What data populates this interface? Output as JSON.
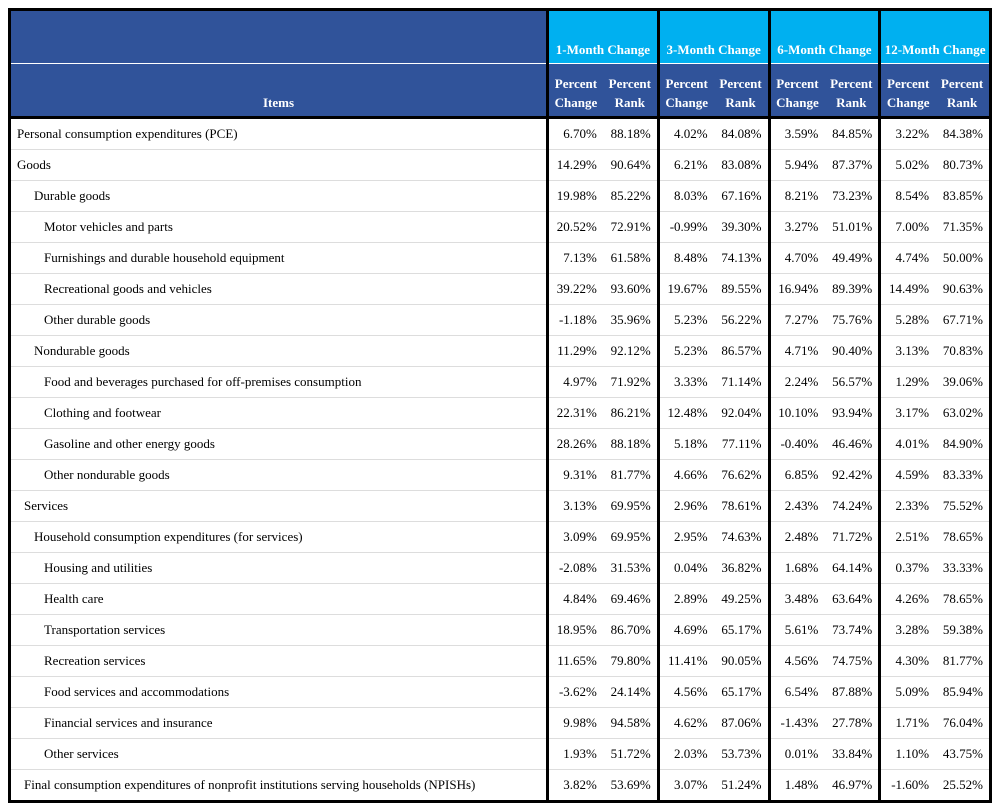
{
  "header": {
    "items": "Items",
    "groups": [
      "1-Month Change",
      "3-Month Change",
      "6-Month Change",
      "12-Month Change"
    ],
    "subheaders": [
      "Percent Change",
      "Percent Rank"
    ]
  },
  "rows": [
    {
      "label": "Personal consumption expenditures (PCE)",
      "values": [
        "6.70%",
        "88.18%",
        "4.02%",
        "84.08%",
        "3.59%",
        "84.85%",
        "3.22%",
        "84.38%"
      ]
    },
    {
      "label": "Goods",
      "values": [
        "14.29%",
        "90.64%",
        "6.21%",
        "83.08%",
        "5.94%",
        "87.37%",
        "5.02%",
        "80.73%"
      ]
    },
    {
      "label": "Durable goods",
      "values": [
        "19.98%",
        "85.22%",
        "8.03%",
        "67.16%",
        "8.21%",
        "73.23%",
        "8.54%",
        "83.85%"
      ]
    },
    {
      "label": "Motor vehicles and parts",
      "values": [
        "20.52%",
        "72.91%",
        "-0.99%",
        "39.30%",
        "3.27%",
        "51.01%",
        "7.00%",
        "71.35%"
      ]
    },
    {
      "label": "Furnishings and durable household equipment",
      "values": [
        "7.13%",
        "61.58%",
        "8.48%",
        "74.13%",
        "4.70%",
        "49.49%",
        "4.74%",
        "50.00%"
      ]
    },
    {
      "label": "Recreational goods and vehicles",
      "values": [
        "39.22%",
        "93.60%",
        "19.67%",
        "89.55%",
        "16.94%",
        "89.39%",
        "14.49%",
        "90.63%"
      ]
    },
    {
      "label": "Other durable goods",
      "values": [
        "-1.18%",
        "35.96%",
        "5.23%",
        "56.22%",
        "7.27%",
        "75.76%",
        "5.28%",
        "67.71%"
      ]
    },
    {
      "label": "Nondurable goods",
      "values": [
        "11.29%",
        "92.12%",
        "5.23%",
        "86.57%",
        "4.71%",
        "90.40%",
        "3.13%",
        "70.83%"
      ]
    },
    {
      "label": "Food and beverages purchased for off-premises consumption",
      "values": [
        "4.97%",
        "71.92%",
        "3.33%",
        "71.14%",
        "2.24%",
        "56.57%",
        "1.29%",
        "39.06%"
      ]
    },
    {
      "label": "Clothing and footwear",
      "values": [
        "22.31%",
        "86.21%",
        "12.48%",
        "92.04%",
        "10.10%",
        "93.94%",
        "3.17%",
        "63.02%"
      ]
    },
    {
      "label": "Gasoline and other energy goods",
      "values": [
        "28.26%",
        "88.18%",
        "5.18%",
        "77.11%",
        "-0.40%",
        "46.46%",
        "4.01%",
        "84.90%"
      ]
    },
    {
      "label": "Other nondurable goods",
      "values": [
        "9.31%",
        "81.77%",
        "4.66%",
        "76.62%",
        "6.85%",
        "92.42%",
        "4.59%",
        "83.33%"
      ]
    },
    {
      "label": "Services",
      "values": [
        "3.13%",
        "69.95%",
        "2.96%",
        "78.61%",
        "2.43%",
        "74.24%",
        "2.33%",
        "75.52%"
      ]
    },
    {
      "label": "Household consumption expenditures (for services)",
      "values": [
        "3.09%",
        "69.95%",
        "2.95%",
        "74.63%",
        "2.48%",
        "71.72%",
        "2.51%",
        "78.65%"
      ]
    },
    {
      "label": "Housing and utilities",
      "values": [
        "-2.08%",
        "31.53%",
        "0.04%",
        "36.82%",
        "1.68%",
        "64.14%",
        "0.37%",
        "33.33%"
      ]
    },
    {
      "label": "Health care",
      "values": [
        "4.84%",
        "69.46%",
        "2.89%",
        "49.25%",
        "3.48%",
        "63.64%",
        "4.26%",
        "78.65%"
      ]
    },
    {
      "label": "Transportation services",
      "values": [
        "18.95%",
        "86.70%",
        "4.69%",
        "65.17%",
        "5.61%",
        "73.74%",
        "3.28%",
        "59.38%"
      ]
    },
    {
      "label": "Recreation services",
      "values": [
        "11.65%",
        "79.80%",
        "11.41%",
        "90.05%",
        "4.56%",
        "74.75%",
        "4.30%",
        "81.77%"
      ]
    },
    {
      "label": "Food services and accommodations",
      "values": [
        "-3.62%",
        "24.14%",
        "4.56%",
        "65.17%",
        "6.54%",
        "87.88%",
        "5.09%",
        "85.94%"
      ]
    },
    {
      "label": "Financial services and insurance",
      "values": [
        "9.98%",
        "94.58%",
        "4.62%",
        "87.06%",
        "-1.43%",
        "27.78%",
        "1.71%",
        "76.04%"
      ]
    },
    {
      "label": "Other services",
      "values": [
        "1.93%",
        "51.72%",
        "2.03%",
        "53.73%",
        "0.01%",
        "33.84%",
        "1.10%",
        "43.75%"
      ]
    },
    {
      "label": "Final consumption expenditures of nonprofit institutions serving households (NPISHs)",
      "values": [
        "3.82%",
        "53.69%",
        "3.07%",
        "51.24%",
        "1.48%",
        "46.97%",
        "-1.60%",
        "25.52%"
      ]
    }
  ]
}
